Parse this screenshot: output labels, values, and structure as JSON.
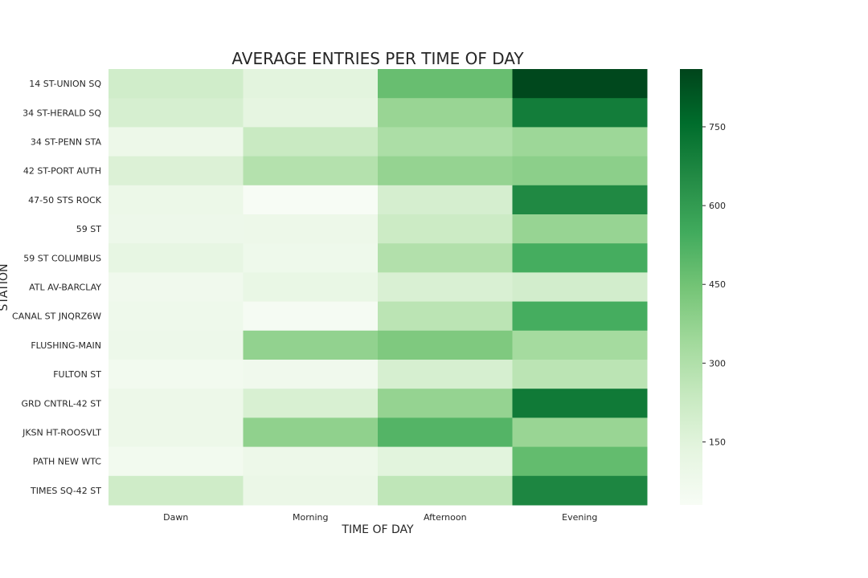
{
  "chart_data": {
    "type": "heatmap",
    "title": "AVERAGE ENTRIES PER TIME OF DAY",
    "xlabel": "TIME OF DAY",
    "ylabel": "STATION",
    "x_categories": [
      "Dawn",
      "Morning",
      "Afternoon",
      "Evening"
    ],
    "y_categories": [
      "14 ST-UNION SQ",
      "34 ST-HERALD SQ",
      "34 ST-PENN STA",
      "42 ST-PORT AUTH",
      "47-50 STS ROCK",
      "59 ST",
      "59 ST COLUMBUS",
      "ATL AV-BARCLAY",
      "CANAL ST JNQRZ6W",
      "FLUSHING-MAIN",
      "FULTON ST",
      "GRD CNTRL-42 ST",
      "JKSN HT-ROOSVLT",
      "PATH NEW WTC",
      "TIMES SQ-42 ST"
    ],
    "values": [
      [
        205,
        140,
        470,
        850
      ],
      [
        185,
        130,
        360,
        700
      ],
      [
        90,
        230,
        310,
        350
      ],
      [
        165,
        290,
        370,
        390
      ],
      [
        95,
        30,
        190,
        660
      ],
      [
        85,
        90,
        220,
        365
      ],
      [
        120,
        80,
        295,
        540
      ],
      [
        70,
        110,
        175,
        200
      ],
      [
        80,
        40,
        270,
        540
      ],
      [
        85,
        375,
        420,
        330
      ],
      [
        60,
        70,
        185,
        270
      ],
      [
        90,
        180,
        370,
        710
      ],
      [
        90,
        380,
        510,
        360
      ],
      [
        60,
        90,
        145,
        480
      ],
      [
        210,
        100,
        260,
        670
      ]
    ],
    "colorbar": {
      "min": 30,
      "max": 860,
      "ticks": [
        150,
        300,
        450,
        600,
        750
      ],
      "colormap": "Greens"
    },
    "grid": false,
    "legend": "none"
  }
}
